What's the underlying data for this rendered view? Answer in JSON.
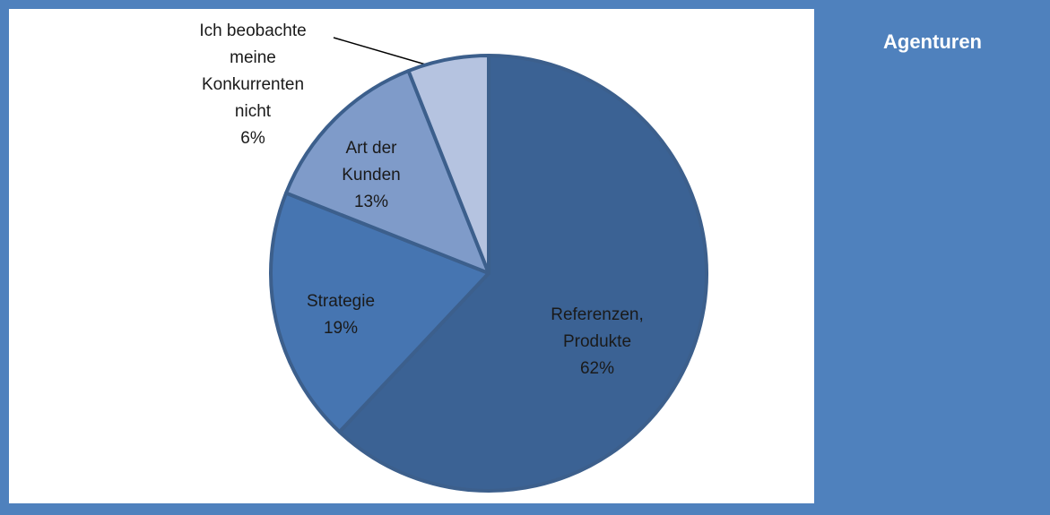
{
  "chart_data": {
    "type": "pie",
    "title": "Agenturen",
    "categories": [
      "Referenzen,\nProdukte",
      "Strategie",
      "Art der\nKunden",
      "Ich beobachte\nmeine\nKonkurrenten\nnicht"
    ],
    "values": [
      62,
      19,
      13,
      6
    ],
    "value_labels": [
      "62%",
      "19%",
      "13%",
      "6%"
    ],
    "colors": [
      "#3b6294",
      "#4675b1",
      "#7f9bc9",
      "#b5c3e0"
    ]
  }
}
